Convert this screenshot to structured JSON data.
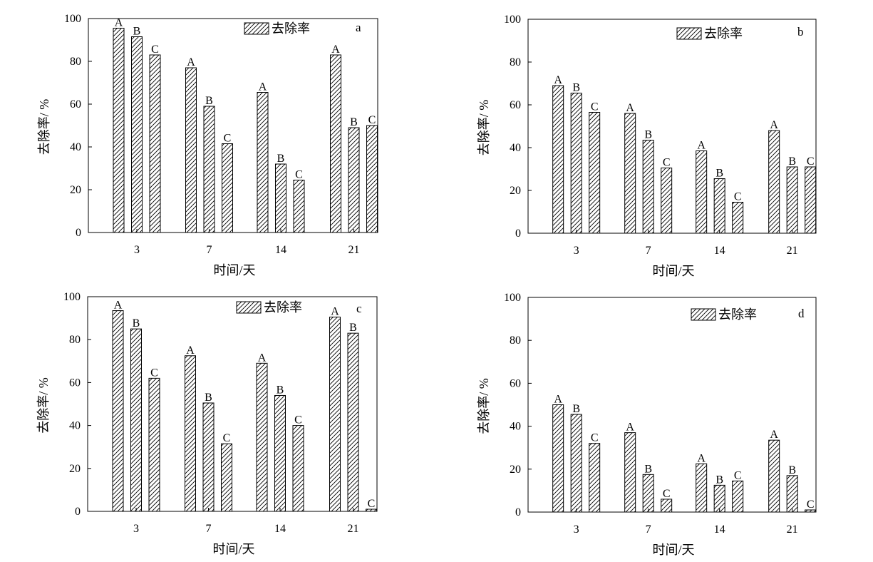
{
  "chart_data": [
    {
      "type": "bar",
      "panel": "a",
      "categories": [
        "3",
        "7",
        "14",
        "21"
      ],
      "series": [
        {
          "name": "A",
          "values": [
            95.5,
            77,
            65.5,
            83
          ]
        },
        {
          "name": "B",
          "values": [
            91.5,
            59,
            32,
            49
          ]
        },
        {
          "name": "C",
          "values": [
            83,
            41.5,
            24.5,
            50
          ]
        }
      ],
      "legend": "去除率",
      "legend_position": "top-right",
      "xlabel": "时间/天",
      "ylabel": "去除率/ %",
      "ylim": [
        0,
        100
      ],
      "yticks": [
        "0",
        "20",
        "40",
        "60",
        "80",
        "100"
      ],
      "grid": false
    },
    {
      "type": "bar",
      "panel": "b",
      "categories": [
        "3",
        "7",
        "14",
        "21"
      ],
      "series": [
        {
          "name": "A",
          "values": [
            69,
            56,
            38.5,
            48
          ]
        },
        {
          "name": "B",
          "values": [
            65.5,
            43.5,
            25.5,
            31
          ]
        },
        {
          "name": "C",
          "values": [
            56.5,
            30.5,
            14.5,
            31
          ]
        }
      ],
      "legend": "去除率",
      "legend_position": "top-right",
      "xlabel": "时间/天",
      "ylabel": "去除率/ %",
      "ylim": [
        0,
        100
      ],
      "yticks": [
        "0",
        "20",
        "40",
        "60",
        "80",
        "100"
      ],
      "grid": false
    },
    {
      "type": "bar",
      "panel": "c",
      "categories": [
        "3",
        "7",
        "14",
        "21"
      ],
      "series": [
        {
          "name": "A",
          "values": [
            93.5,
            72.5,
            69,
            90.5
          ]
        },
        {
          "name": "B",
          "values": [
            85,
            50.5,
            54,
            83
          ]
        },
        {
          "name": "C",
          "values": [
            62,
            31.5,
            40,
            1
          ]
        }
      ],
      "legend": "去除率",
      "legend_position": "top-right",
      "xlabel": "时间/天",
      "ylabel": "去除率/ %",
      "ylim": [
        0,
        100
      ],
      "yticks": [
        "0",
        "20",
        "40",
        "60",
        "80",
        "100"
      ],
      "grid": false
    },
    {
      "type": "bar",
      "panel": "d",
      "categories": [
        "3",
        "7",
        "14",
        "21"
      ],
      "series": [
        {
          "name": "A",
          "values": [
            50,
            37,
            22.5,
            33.5
          ]
        },
        {
          "name": "B",
          "values": [
            45.5,
            17.5,
            12.5,
            17
          ]
        },
        {
          "name": "C",
          "values": [
            32,
            6,
            14.5,
            1
          ]
        }
      ],
      "legend": "去除率",
      "legend_position": "top-right",
      "xlabel": "时间/天",
      "ylabel": "去除率/ %",
      "ylim": [
        0,
        100
      ],
      "yticks": [
        "0",
        "20",
        "40",
        "60",
        "80",
        "100"
      ],
      "grid": false
    }
  ]
}
